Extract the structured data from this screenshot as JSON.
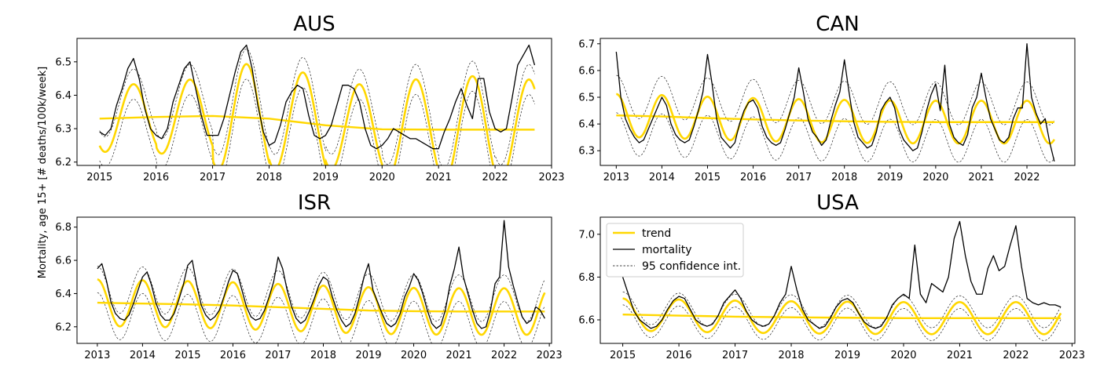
{
  "figure": {
    "ylabel": "Mortality, age 15+ [# deaths/100k/week]",
    "colors": {
      "trend": "#FFD700",
      "seasonal": "#FFD700",
      "mortality": "#000000",
      "ci": "#000000"
    },
    "legend": {
      "placement": "upper-left of USA panel",
      "entries": [
        {
          "label": "trend",
          "style": "trend"
        },
        {
          "label": "mortality",
          "style": "mortality"
        },
        {
          "label": "95 confidence int.",
          "style": "ci"
        }
      ]
    }
  },
  "chart_data": [
    {
      "type": "line",
      "title": "AUS",
      "xlim": [
        2014.6,
        2023.0
      ],
      "ylim": [
        6.19,
        6.57
      ],
      "xticks": [
        2015,
        2016,
        2017,
        2018,
        2019,
        2020,
        2021,
        2022,
        2023
      ],
      "yticks": [
        "6.2",
        "6.3",
        "6.4",
        "6.5"
      ],
      "trend": {
        "x": [
          2015,
          2016,
          2017,
          2018,
          2019,
          2020,
          2021,
          2022,
          2022.7
        ],
        "y": [
          6.33,
          6.335,
          6.338,
          6.33,
          6.31,
          6.298,
          6.297,
          6.297,
          6.297
        ]
      },
      "seasonal": {
        "x_start": 2015,
        "x_end": 2022.7,
        "peak_phase": 0.6,
        "amplitude": [
          0.1,
          0.11,
          0.16,
          0.15,
          0.13,
          0.15,
          0.16,
          0.15
        ]
      },
      "ci_half_width": 0.045,
      "mortality": {
        "x": [
          2015.0,
          2015.1,
          2015.2,
          2015.3,
          2015.4,
          2015.5,
          2015.6,
          2015.7,
          2015.8,
          2015.9,
          2016.0,
          2016.1,
          2016.2,
          2016.3,
          2016.4,
          2016.5,
          2016.6,
          2016.7,
          2016.8,
          2016.9,
          2017.0,
          2017.1,
          2017.2,
          2017.3,
          2017.4,
          2017.5,
          2017.6,
          2017.7,
          2017.8,
          2017.9,
          2018.0,
          2018.1,
          2018.2,
          2018.3,
          2018.4,
          2018.5,
          2018.6,
          2018.7,
          2018.8,
          2018.9,
          2019.0,
          2019.1,
          2019.2,
          2019.3,
          2019.4,
          2019.5,
          2019.6,
          2019.7,
          2019.8,
          2019.9,
          2020.0,
          2020.1,
          2020.2,
          2020.3,
          2020.4,
          2020.5,
          2020.6,
          2020.7,
          2020.8,
          2020.9,
          2021.0,
          2021.1,
          2021.2,
          2021.3,
          2021.4,
          2021.5,
          2021.6,
          2021.7,
          2021.8,
          2021.9,
          2022.0,
          2022.1,
          2022.2,
          2022.3,
          2022.4,
          2022.5,
          2022.6,
          2022.7
        ],
        "y": [
          6.29,
          6.28,
          6.3,
          6.37,
          6.42,
          6.48,
          6.51,
          6.45,
          6.36,
          6.3,
          6.28,
          6.27,
          6.3,
          6.38,
          6.43,
          6.48,
          6.5,
          6.42,
          6.34,
          6.28,
          6.28,
          6.28,
          6.33,
          6.4,
          6.47,
          6.53,
          6.55,
          6.48,
          6.37,
          6.29,
          6.25,
          6.26,
          6.31,
          6.38,
          6.41,
          6.43,
          6.42,
          6.34,
          6.28,
          6.27,
          6.28,
          6.31,
          6.37,
          6.43,
          6.43,
          6.42,
          6.38,
          6.3,
          6.25,
          6.24,
          6.25,
          6.27,
          6.3,
          6.29,
          6.28,
          6.27,
          6.27,
          6.26,
          6.25,
          6.24,
          6.24,
          6.29,
          6.33,
          6.38,
          6.42,
          6.37,
          6.33,
          6.45,
          6.45,
          6.35,
          6.3,
          6.29,
          6.3,
          6.39,
          6.49,
          6.52,
          6.55,
          6.49
        ]
      }
    },
    {
      "type": "line",
      "title": "CAN",
      "xlim": [
        2012.65,
        2023.05
      ],
      "ylim": [
        6.245,
        6.72
      ],
      "xticks": [
        2013,
        2014,
        2015,
        2016,
        2017,
        2018,
        2019,
        2020,
        2021,
        2022
      ],
      "yticks": [
        "6.3",
        "6.4",
        "6.5",
        "6.6",
        "6.7"
      ],
      "trend": {
        "x": [
          2013,
          2014,
          2015,
          2016,
          2017,
          2018,
          2019,
          2020,
          2021,
          2022,
          2022.6
        ],
        "y": [
          6.432,
          6.428,
          6.422,
          6.417,
          6.413,
          6.41,
          6.408,
          6.407,
          6.407,
          6.407,
          6.407
        ]
      },
      "seasonal": {
        "x_start": 2013,
        "x_end": 2022.6,
        "peak_phase": 0.0,
        "amplitude": [
          0.08,
          0.08,
          0.08,
          0.08,
          0.08,
          0.08,
          0.08,
          0.08,
          0.08,
          0.08,
          0.08
        ]
      },
      "ci_half_width": 0.07,
      "mortality": {
        "x": [
          2013.0,
          2013.1,
          2013.2,
          2013.3,
          2013.4,
          2013.5,
          2013.6,
          2013.7,
          2013.8,
          2013.9,
          2014.0,
          2014.1,
          2014.2,
          2014.3,
          2014.4,
          2014.5,
          2014.6,
          2014.7,
          2014.8,
          2014.9,
          2015.0,
          2015.1,
          2015.2,
          2015.3,
          2015.4,
          2015.5,
          2015.6,
          2015.7,
          2015.8,
          2015.9,
          2016.0,
          2016.1,
          2016.2,
          2016.3,
          2016.4,
          2016.5,
          2016.6,
          2016.7,
          2016.8,
          2016.9,
          2017.0,
          2017.1,
          2017.2,
          2017.3,
          2017.4,
          2017.5,
          2017.6,
          2017.7,
          2017.8,
          2017.9,
          2018.0,
          2018.1,
          2018.2,
          2018.3,
          2018.4,
          2018.5,
          2018.6,
          2018.7,
          2018.8,
          2018.9,
          2019.0,
          2019.1,
          2019.2,
          2019.3,
          2019.4,
          2019.5,
          2019.6,
          2019.7,
          2019.8,
          2019.9,
          2020.0,
          2020.1,
          2020.2,
          2020.3,
          2020.4,
          2020.5,
          2020.6,
          2020.7,
          2020.8,
          2020.9,
          2021.0,
          2021.1,
          2021.2,
          2021.3,
          2021.4,
          2021.5,
          2021.6,
          2021.7,
          2021.8,
          2021.9,
          2022.0,
          2022.1,
          2022.2,
          2022.3,
          2022.4,
          2022.5,
          2022.6
        ],
        "y": [
          6.67,
          6.5,
          6.42,
          6.38,
          6.35,
          6.33,
          6.34,
          6.38,
          6.42,
          6.46,
          6.5,
          6.47,
          6.4,
          6.36,
          6.34,
          6.33,
          6.34,
          6.39,
          6.45,
          6.52,
          6.66,
          6.55,
          6.42,
          6.35,
          6.33,
          6.31,
          6.33,
          6.4,
          6.45,
          6.48,
          6.49,
          6.46,
          6.39,
          6.35,
          6.33,
          6.32,
          6.33,
          6.38,
          6.44,
          6.5,
          6.61,
          6.52,
          6.42,
          6.37,
          6.35,
          6.32,
          6.34,
          6.41,
          6.47,
          6.52,
          6.64,
          6.52,
          6.41,
          6.35,
          6.33,
          6.31,
          6.32,
          6.37,
          6.45,
          6.48,
          6.5,
          6.46,
          6.38,
          6.34,
          6.32,
          6.3,
          6.31,
          6.37,
          6.45,
          6.51,
          6.55,
          6.45,
          6.62,
          6.4,
          6.35,
          6.33,
          6.32,
          6.36,
          6.46,
          6.5,
          6.59,
          6.5,
          6.42,
          6.38,
          6.34,
          6.33,
          6.35,
          6.42,
          6.46,
          6.46,
          6.7,
          6.5,
          6.44,
          6.4,
          6.42,
          6.33,
          6.26
        ]
      }
    },
    {
      "type": "line",
      "title": "ISR",
      "xlim": [
        2012.55,
        2023.05
      ],
      "ylim": [
        6.1,
        6.86
      ],
      "xticks": [
        2013,
        2014,
        2015,
        2016,
        2017,
        2018,
        2019,
        2020,
        2021,
        2022,
        2023
      ],
      "yticks": [
        "6.2",
        "6.4",
        "6.6",
        "6.8"
      ],
      "trend": {
        "x": [
          2013,
          2014,
          2015,
          2016,
          2017,
          2018,
          2019,
          2020,
          2021,
          2022,
          2022.9
        ],
        "y": [
          6.345,
          6.34,
          6.335,
          6.328,
          6.318,
          6.308,
          6.298,
          6.294,
          6.292,
          6.292,
          6.292
        ]
      },
      "seasonal": {
        "x_start": 2013,
        "x_end": 2022.9,
        "peak_phase": 0.0,
        "amplitude": [
          0.14,
          0.14,
          0.14,
          0.14,
          0.14,
          0.14,
          0.14,
          0.14,
          0.14,
          0.14,
          0.14
        ]
      },
      "ci_half_width": 0.08,
      "mortality": {
        "x": [
          2013.0,
          2013.1,
          2013.2,
          2013.3,
          2013.4,
          2013.5,
          2013.6,
          2013.7,
          2013.8,
          2013.9,
          2014.0,
          2014.1,
          2014.2,
          2014.3,
          2014.4,
          2014.5,
          2014.6,
          2014.7,
          2014.8,
          2014.9,
          2015.0,
          2015.1,
          2015.2,
          2015.3,
          2015.4,
          2015.5,
          2015.6,
          2015.7,
          2015.8,
          2015.9,
          2016.0,
          2016.1,
          2016.2,
          2016.3,
          2016.4,
          2016.5,
          2016.6,
          2016.7,
          2016.8,
          2016.9,
          2017.0,
          2017.1,
          2017.2,
          2017.3,
          2017.4,
          2017.5,
          2017.6,
          2017.7,
          2017.8,
          2017.9,
          2018.0,
          2018.1,
          2018.2,
          2018.3,
          2018.4,
          2018.5,
          2018.6,
          2018.7,
          2018.8,
          2018.9,
          2019.0,
          2019.1,
          2019.2,
          2019.3,
          2019.4,
          2019.5,
          2019.6,
          2019.7,
          2019.8,
          2019.9,
          2020.0,
          2020.1,
          2020.2,
          2020.3,
          2020.4,
          2020.5,
          2020.6,
          2020.7,
          2020.8,
          2020.9,
          2021.0,
          2021.1,
          2021.2,
          2021.3,
          2021.4,
          2021.5,
          2021.6,
          2021.7,
          2021.8,
          2021.9,
          2022.0,
          2022.1,
          2022.2,
          2022.3,
          2022.4,
          2022.5,
          2022.6,
          2022.7,
          2022.8,
          2022.9
        ],
        "y": [
          6.55,
          6.58,
          6.48,
          6.35,
          6.28,
          6.25,
          6.24,
          6.27,
          6.34,
          6.42,
          6.5,
          6.53,
          6.45,
          6.34,
          6.27,
          6.24,
          6.24,
          6.28,
          6.36,
          6.45,
          6.57,
          6.6,
          6.45,
          6.33,
          6.27,
          6.24,
          6.26,
          6.3,
          6.38,
          6.47,
          6.54,
          6.52,
          6.42,
          6.32,
          6.26,
          6.24,
          6.25,
          6.3,
          6.38,
          6.47,
          6.62,
          6.55,
          6.42,
          6.32,
          6.25,
          6.22,
          6.24,
          6.3,
          6.37,
          6.45,
          6.5,
          6.48,
          6.38,
          6.3,
          6.24,
          6.2,
          6.22,
          6.28,
          6.38,
          6.5,
          6.58,
          6.42,
          6.35,
          6.28,
          6.22,
          6.2,
          6.22,
          6.28,
          6.38,
          6.44,
          6.52,
          6.48,
          6.4,
          6.3,
          6.22,
          6.19,
          6.21,
          6.3,
          6.45,
          6.55,
          6.68,
          6.5,
          6.4,
          6.3,
          6.22,
          6.19,
          6.2,
          6.3,
          6.46,
          6.5,
          6.84,
          6.56,
          6.45,
          6.35,
          6.26,
          6.22,
          6.24,
          6.32,
          6.3,
          6.25
        ]
      }
    },
    {
      "type": "line",
      "title": "USA",
      "xlim": [
        2014.6,
        2023.05
      ],
      "ylim": [
        6.49,
        7.08
      ],
      "xticks": [
        2015,
        2016,
        2017,
        2018,
        2019,
        2020,
        2021,
        2022,
        2023
      ],
      "yticks": [
        "6.6",
        "6.8",
        "7.0"
      ],
      "trend": {
        "x": [
          2015,
          2016,
          2017,
          2018,
          2019,
          2020,
          2021,
          2022,
          2022.8
        ],
        "y": [
          6.625,
          6.62,
          6.615,
          6.612,
          6.61,
          6.608,
          6.608,
          6.608,
          6.608
        ]
      },
      "seasonal": {
        "x_start": 2015,
        "x_end": 2022.8,
        "peak_phase": 0.0,
        "amplitude": [
          0.075,
          0.075,
          0.075,
          0.075,
          0.075,
          0.075,
          0.075,
          0.075,
          0.075
        ]
      },
      "ci_half_width": 0.03,
      "mortality": {
        "x": [
          2015.0,
          2015.1,
          2015.2,
          2015.3,
          2015.4,
          2015.5,
          2015.6,
          2015.7,
          2015.8,
          2015.9,
          2016.0,
          2016.1,
          2016.2,
          2016.3,
          2016.4,
          2016.5,
          2016.6,
          2016.7,
          2016.8,
          2016.9,
          2017.0,
          2017.1,
          2017.2,
          2017.3,
          2017.4,
          2017.5,
          2017.6,
          2017.7,
          2017.8,
          2017.9,
          2018.0,
          2018.1,
          2018.2,
          2018.3,
          2018.4,
          2018.5,
          2018.6,
          2018.7,
          2018.8,
          2018.9,
          2019.0,
          2019.1,
          2019.2,
          2019.3,
          2019.4,
          2019.5,
          2019.6,
          2019.7,
          2019.8,
          2019.9,
          2020.0,
          2020.1,
          2020.2,
          2020.3,
          2020.4,
          2020.5,
          2020.6,
          2020.7,
          2020.8,
          2020.9,
          2021.0,
          2021.1,
          2021.2,
          2021.3,
          2021.4,
          2021.5,
          2021.6,
          2021.7,
          2021.8,
          2021.9,
          2022.0,
          2022.1,
          2022.2,
          2022.3,
          2022.4,
          2022.5,
          2022.6,
          2022.7,
          2022.8
        ],
        "y": [
          6.8,
          6.72,
          6.64,
          6.6,
          6.58,
          6.56,
          6.57,
          6.6,
          6.65,
          6.69,
          6.71,
          6.7,
          6.65,
          6.6,
          6.58,
          6.57,
          6.58,
          6.62,
          6.68,
          6.71,
          6.74,
          6.7,
          6.64,
          6.6,
          6.58,
          6.57,
          6.58,
          6.62,
          6.68,
          6.72,
          6.85,
          6.74,
          6.65,
          6.6,
          6.58,
          6.56,
          6.57,
          6.61,
          6.66,
          6.69,
          6.7,
          6.68,
          6.63,
          6.59,
          6.57,
          6.56,
          6.57,
          6.61,
          6.67,
          6.7,
          6.72,
          6.7,
          6.95,
          6.72,
          6.68,
          6.77,
          6.75,
          6.73,
          6.8,
          6.98,
          7.06,
          6.9,
          6.78,
          6.72,
          6.72,
          6.84,
          6.9,
          6.83,
          6.85,
          6.95,
          7.04,
          6.85,
          6.7,
          6.68,
          6.67,
          6.68,
          6.67,
          6.67,
          6.66
        ]
      }
    }
  ]
}
